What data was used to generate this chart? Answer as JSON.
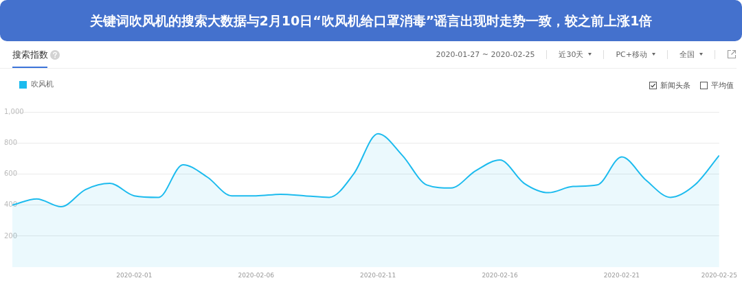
{
  "chart_data": {
    "type": "area",
    "title": "关键词吹风机的搜索大数据与2月10日“吹风机给口罩消毒”谣言出现时走势一致，较之前上涨1倍",
    "subtitle": "搜索指数",
    "x": [
      "2020-01-27",
      "2020-01-28",
      "2020-01-29",
      "2020-01-30",
      "2020-01-31",
      "2020-02-01",
      "2020-02-02",
      "2020-02-03",
      "2020-02-04",
      "2020-02-05",
      "2020-02-06",
      "2020-02-07",
      "2020-02-08",
      "2020-02-09",
      "2020-02-10",
      "2020-02-11",
      "2020-02-12",
      "2020-02-13",
      "2020-02-14",
      "2020-02-15",
      "2020-02-16",
      "2020-02-17",
      "2020-02-18",
      "2020-02-19",
      "2020-02-20",
      "2020-02-21",
      "2020-02-22",
      "2020-02-23",
      "2020-02-24",
      "2020-02-25"
    ],
    "series": [
      {
        "name": "吹风机",
        "color": "#1cbbee",
        "values": [
          400,
          440,
          390,
          500,
          540,
          460,
          450,
          660,
          580,
          460,
          460,
          470,
          460,
          450,
          600,
          860,
          720,
          530,
          510,
          620,
          690,
          540,
          480,
          520,
          530,
          710,
          560,
          450,
          530,
          720
        ]
      }
    ],
    "xlim": [
      "2020-01-27",
      "2020-02-25"
    ],
    "xticks": [
      "2020-02-01",
      "2020-02-06",
      "2020-02-11",
      "2020-02-16",
      "2020-02-21",
      "2020-02-25"
    ],
    "ylim": [
      0,
      1000
    ],
    "yticks": [
      200,
      400,
      600,
      800,
      {
        "value": 1000,
        "label": "1,000"
      }
    ],
    "grid": "y",
    "legend": "top left",
    "annotations": [
      "2020-01-27 ~ 2020-02-25",
      "近30天",
      "PC+移动",
      "全国",
      "新闻头条",
      "平均值"
    ]
  }
}
